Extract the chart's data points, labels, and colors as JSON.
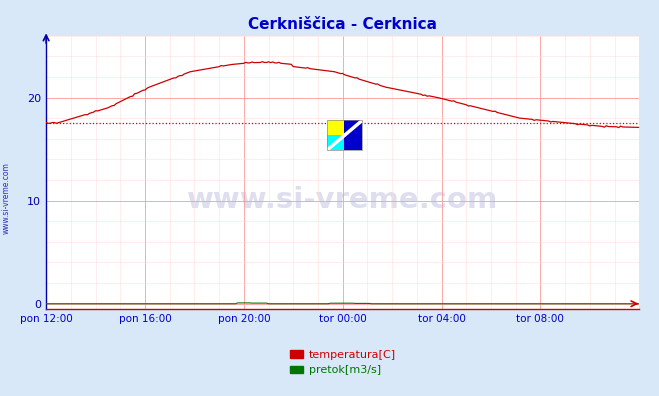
{
  "title": "Cerkniščica - Cerknica",
  "title_color": "#0000cc",
  "bg_color": "#d8e8f8",
  "plot_bg_color": "#ffffff",
  "grid_color_major": "#ff9999",
  "grid_color_minor": "#ffdddd",
  "xlabel_color": "#0000cc",
  "ylabel_color": "#0000aa",
  "xtick_labels": [
    "pon 12:00",
    "pon 16:00",
    "pon 20:00",
    "tor 00:00",
    "tor 04:00",
    "tor 08:00"
  ],
  "xtick_positions": [
    0,
    48,
    96,
    144,
    192,
    240
  ],
  "ytick_positions": [
    0,
    10,
    20
  ],
  "ytick_labels": [
    "0",
    "10",
    "20"
  ],
  "ylim": [
    -0.5,
    26
  ],
  "xlim": [
    0,
    288
  ],
  "temp_color": "#cc0000",
  "flow_color": "#007700",
  "dashed_line_color": "#cc0000",
  "dashed_line_value": 17.5,
  "watermark_text": "www.si-vreme.com",
  "watermark_color": "#000080",
  "watermark_alpha": 0.13,
  "sidebar_text": "www.si-vreme.com",
  "sidebar_color": "#0000aa",
  "legend_temp": "temperatura[C]",
  "legend_flow": "pretok[m3/s]",
  "arrow_color": "#cc0000",
  "yaxis_color": "#0000aa"
}
